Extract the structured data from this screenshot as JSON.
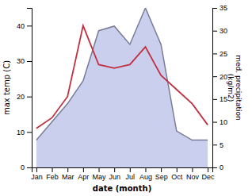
{
  "chart_data": {
    "type": "line",
    "categories": [
      "Jan",
      "Feb",
      "Mar",
      "Apr",
      "May",
      "Jun",
      "Jul",
      "Aug",
      "Sep",
      "Oct",
      "Nov",
      "Dec"
    ],
    "series": [
      {
        "type": "area",
        "axis": "y2",
        "color": "#b8bfe8",
        "values": [
          6,
          10,
          14,
          19,
          30,
          31,
          27,
          35,
          27,
          8,
          6,
          6
        ]
      },
      {
        "type": "line",
        "color": "#c03040",
        "values": [
          11,
          14,
          20,
          40,
          29,
          28,
          29,
          34,
          26,
          22,
          18,
          12
        ]
      }
    ],
    "xlabel": "date (month)",
    "ylabel": "max temp (C)",
    "y2label": "med. precipitation\n(kg/m2)",
    "ylim": [
      0,
      45
    ],
    "yticks": [
      0,
      10,
      20,
      30,
      40
    ],
    "y2lim": [
      0,
      35
    ],
    "y2ticks": [
      0,
      5,
      10,
      15,
      20,
      25,
      30,
      35
    ],
    "grid": false
  }
}
